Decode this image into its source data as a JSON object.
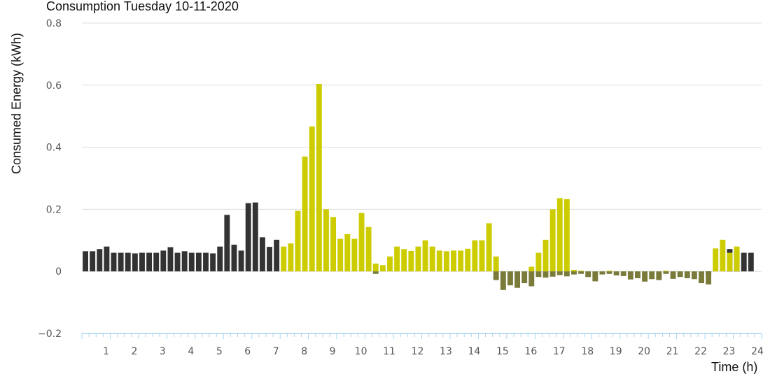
{
  "chart_data": {
    "type": "bar",
    "title": "Consumption Tuesday 10-11-2020",
    "xlabel": "Time (h)",
    "ylabel": "Consumed Energy (kWh)",
    "ylim": [
      -0.2,
      0.8
    ],
    "yticks": [
      "−0.2",
      "0",
      "0.2",
      "0.4",
      "0.6",
      "0.8"
    ],
    "ytick_values": [
      -0.2,
      0,
      0.2,
      0.4,
      0.6,
      0.8
    ],
    "xticks": [
      "1",
      "2",
      "3",
      "4",
      "5",
      "6",
      "7",
      "8",
      "9",
      "10",
      "11",
      "12",
      "13",
      "14",
      "15",
      "16",
      "17",
      "18",
      "19",
      "20",
      "21",
      "22",
      "23",
      "24"
    ],
    "xlim": [
      0,
      24
    ],
    "grid": "horizontal",
    "interval_hours": 0.25,
    "colors": {
      "grid_import": "#333333",
      "solar": "#cccc00",
      "feed_in": "#7a7a3a",
      "gridline": "#dddddd",
      "axis": "#aad4ee"
    },
    "series": [
      {
        "legend_label": "",
        "color_key": "grid_import",
        "points": [
          [
            0,
            0.065
          ],
          [
            0.25,
            0.065
          ],
          [
            0.5,
            0.072
          ],
          [
            0.75,
            0.08
          ],
          [
            1.0,
            0.06
          ],
          [
            1.25,
            0.06
          ],
          [
            1.5,
            0.06
          ],
          [
            1.75,
            0.058
          ],
          [
            2.0,
            0.06
          ],
          [
            2.25,
            0.06
          ],
          [
            2.5,
            0.06
          ],
          [
            2.75,
            0.067
          ],
          [
            3.0,
            0.078
          ],
          [
            3.25,
            0.06
          ],
          [
            3.5,
            0.065
          ],
          [
            3.75,
            0.06
          ],
          [
            4.0,
            0.06
          ],
          [
            4.25,
            0.06
          ],
          [
            4.5,
            0.058
          ],
          [
            4.75,
            0.08
          ],
          [
            5.0,
            0.182
          ],
          [
            5.25,
            0.086
          ],
          [
            5.5,
            0.067
          ],
          [
            5.75,
            0.22
          ],
          [
            6.0,
            0.222
          ],
          [
            6.25,
            0.11
          ],
          [
            6.5,
            0.079
          ],
          [
            6.75,
            0.102
          ],
          [
            22.0,
            -0.01
          ],
          [
            22.75,
            0.072
          ],
          [
            23.0,
            0.065
          ],
          [
            23.25,
            0.06
          ],
          [
            23.5,
            0.06
          ]
        ]
      },
      {
        "legend_label": "",
        "color_key": "solar",
        "points": [
          [
            7.0,
            0.08
          ],
          [
            7.25,
            0.09
          ],
          [
            7.5,
            0.195
          ],
          [
            7.75,
            0.37
          ],
          [
            8.0,
            0.467
          ],
          [
            8.25,
            0.604
          ],
          [
            8.5,
            0.2
          ],
          [
            8.75,
            0.175
          ],
          [
            9.0,
            0.105
          ],
          [
            9.25,
            0.12
          ],
          [
            9.5,
            0.105
          ],
          [
            9.75,
            0.188
          ],
          [
            10.0,
            0.143
          ],
          [
            10.25,
            0.025
          ],
          [
            10.5,
            0.02
          ],
          [
            10.75,
            0.048
          ],
          [
            11.0,
            0.08
          ],
          [
            11.25,
            0.072
          ],
          [
            11.5,
            0.066
          ],
          [
            11.75,
            0.08
          ],
          [
            12.0,
            0.1
          ],
          [
            12.25,
            0.08
          ],
          [
            12.5,
            0.067
          ],
          [
            12.75,
            0.065
          ],
          [
            13.0,
            0.067
          ],
          [
            13.25,
            0.067
          ],
          [
            13.5,
            0.073
          ],
          [
            13.75,
            0.1
          ],
          [
            14.0,
            0.1
          ],
          [
            14.25,
            0.155
          ],
          [
            14.5,
            0.048
          ],
          [
            15.75,
            0.015
          ],
          [
            16.0,
            0.06
          ],
          [
            16.25,
            0.102
          ],
          [
            16.5,
            0.2
          ],
          [
            16.75,
            0.236
          ],
          [
            17.0,
            0.233
          ],
          [
            17.25,
            0.005
          ],
          [
            17.5,
            0.002
          ],
          [
            18.5,
            0.002
          ],
          [
            20.5,
            0.002
          ],
          [
            22.25,
            0.074
          ],
          [
            22.5,
            0.102
          ],
          [
            22.75,
            0.06
          ],
          [
            23.0,
            0.08
          ]
        ]
      },
      {
        "legend_label": "",
        "color_key": "feed_in",
        "points": [
          [
            10.25,
            -0.008
          ],
          [
            14.5,
            -0.028
          ],
          [
            14.75,
            -0.06
          ],
          [
            15.0,
            -0.045
          ],
          [
            15.25,
            -0.053
          ],
          [
            15.5,
            -0.038
          ],
          [
            15.75,
            -0.048
          ],
          [
            16.0,
            -0.018
          ],
          [
            16.25,
            -0.02
          ],
          [
            16.5,
            -0.017
          ],
          [
            16.75,
            -0.012
          ],
          [
            17.0,
            -0.016
          ],
          [
            17.25,
            -0.01
          ],
          [
            17.5,
            -0.008
          ],
          [
            17.75,
            -0.018
          ],
          [
            18.0,
            -0.032
          ],
          [
            18.25,
            -0.01
          ],
          [
            18.5,
            -0.008
          ],
          [
            18.75,
            -0.013
          ],
          [
            19.0,
            -0.015
          ],
          [
            19.25,
            -0.026
          ],
          [
            19.5,
            -0.022
          ],
          [
            19.75,
            -0.033
          ],
          [
            20.0,
            -0.025
          ],
          [
            20.25,
            -0.028
          ],
          [
            20.5,
            -0.008
          ],
          [
            20.75,
            -0.024
          ],
          [
            21.0,
            -0.018
          ],
          [
            21.25,
            -0.022
          ],
          [
            21.5,
            -0.025
          ],
          [
            21.75,
            -0.038
          ],
          [
            22.0,
            -0.042
          ]
        ]
      }
    ]
  }
}
